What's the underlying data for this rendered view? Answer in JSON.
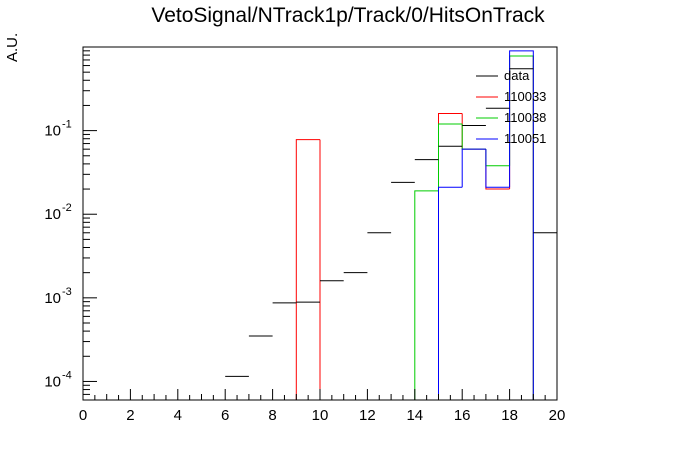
{
  "chart_data": {
    "type": "bar",
    "title": "VetoSignal/NTrack1p/Track/0/HitsOnTrack",
    "xlabel": "",
    "ylabel": "A.U.",
    "xlim": [
      0,
      20
    ],
    "ylim": [
      6e-05,
      1
    ],
    "yscale": "log",
    "x_ticks": [
      "0",
      "2",
      "4",
      "6",
      "8",
      "10",
      "12",
      "14",
      "16",
      "18",
      "20"
    ],
    "y_ticks": [
      {
        "value": 0.0001,
        "base": "10",
        "exp": "-4"
      },
      {
        "value": 0.001,
        "base": "10",
        "exp": "-3"
      },
      {
        "value": 0.01,
        "base": "10",
        "exp": "-2"
      },
      {
        "value": 0.1,
        "base": "10",
        "exp": "-1"
      }
    ],
    "legend_position": "top-right",
    "series": [
      {
        "name": "data",
        "color": "#000000",
        "style": "markers",
        "bin_edges": [
          6,
          7,
          8,
          9,
          10,
          11,
          12,
          13,
          14,
          15,
          16,
          17,
          18,
          19,
          20
        ],
        "values": [
          0.000115,
          0.00035,
          0.00087,
          0.00089,
          0.0016,
          0.002,
          0.006,
          0.024,
          0.045,
          0.065,
          0.115,
          0.185,
          0.55,
          0.006
        ]
      },
      {
        "name": "110033",
        "color": "#ff0000",
        "style": "hist",
        "bin_edges": [
          9,
          10,
          15,
          16,
          17,
          18,
          19
        ],
        "values": [
          0.078,
          0,
          0.16,
          0.06,
          0.02,
          0.78
        ]
      },
      {
        "name": "110038",
        "color": "#00cc00",
        "style": "hist",
        "bin_edges": [
          14,
          15,
          16,
          17,
          18,
          19
        ],
        "values": [
          0.019,
          0.12,
          0.06,
          0.038,
          0.78
        ]
      },
      {
        "name": "110051",
        "color": "#0000ff",
        "style": "hist",
        "bin_edges": [
          15,
          16,
          17,
          18,
          19
        ],
        "values": [
          0.021,
          0.06,
          0.021,
          0.9
        ]
      }
    ]
  }
}
